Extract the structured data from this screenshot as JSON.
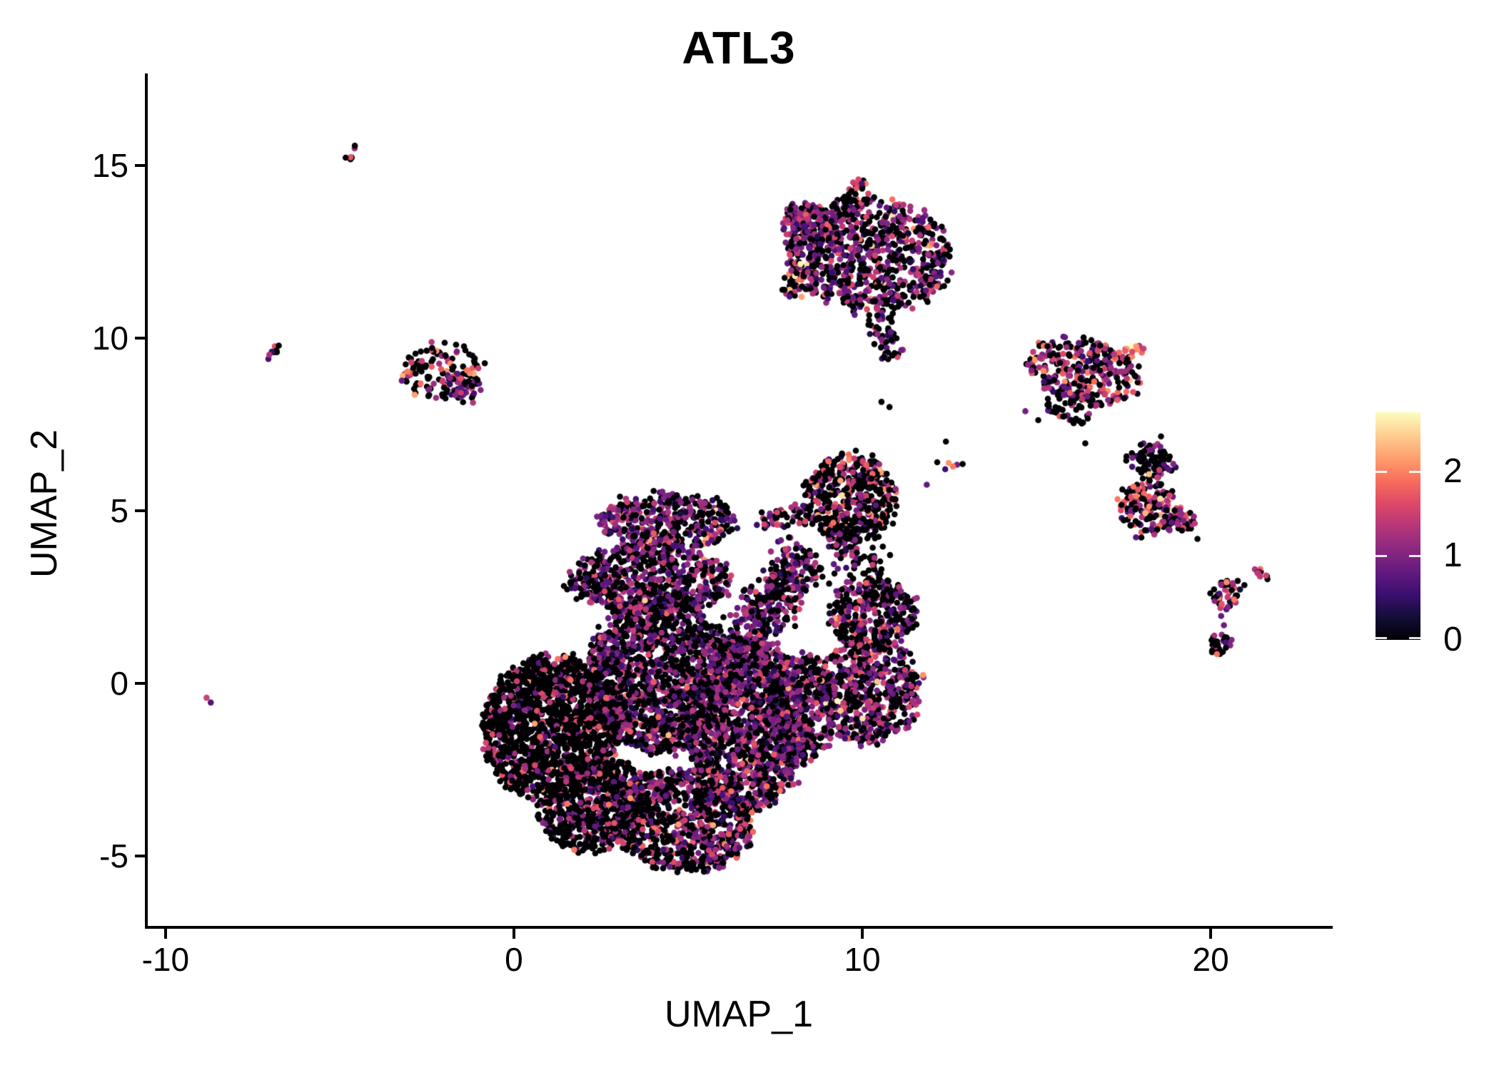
{
  "figure": {
    "background_color": "#FFFFFF",
    "axis_color": "#000000",
    "text_color": "#000000"
  },
  "chart_data": {
    "type": "scatter",
    "title": "ATL3",
    "xlabel": "UMAP_1",
    "ylabel": "UMAP_2",
    "xlim": [
      -10.55,
      23.46
    ],
    "ylim": [
      -7.07,
      17.62
    ],
    "x_ticks": [
      -10,
      0,
      10,
      20
    ],
    "y_ticks": [
      -5,
      0,
      5,
      10,
      15
    ],
    "grid": false,
    "point_radius_px": 4.3,
    "legend": {
      "type": "colorbar",
      "position": "right",
      "min": 0,
      "max": 2.7,
      "ticks": [
        0,
        1,
        2
      ]
    },
    "colormap": {
      "name": "magma",
      "stops": [
        [
          0.0,
          "#000004"
        ],
        [
          0.1,
          "#140E36"
        ],
        [
          0.2,
          "#3B0F70"
        ],
        [
          0.3,
          "#641A80"
        ],
        [
          0.4,
          "#8C2981"
        ],
        [
          0.5,
          "#B63679"
        ],
        [
          0.6,
          "#DE4968"
        ],
        [
          0.7,
          "#F76F5C"
        ],
        [
          0.8,
          "#FE9F6D"
        ],
        [
          0.9,
          "#FECE91"
        ],
        [
          1.0,
          "#FCFDBF"
        ]
      ]
    },
    "clusters": [
      {
        "t": "e",
        "cx": 1.1,
        "cy": -1.3,
        "rx": 1.95,
        "ry": 2.15,
        "rot": -15,
        "n": 1600,
        "p0": 0.8,
        "m": 1.35,
        "sd": 0.35
      },
      {
        "t": "e",
        "cx": 2.3,
        "cy": -3.5,
        "rx": 1.6,
        "ry": 1.25,
        "rot": 25,
        "n": 650,
        "p0": 0.7,
        "m": 1.2,
        "sd": 0.4
      },
      {
        "t": "e",
        "cx": 4.2,
        "cy": 0.3,
        "rx": 2.05,
        "ry": 2.3,
        "rot": 0,
        "n": 1500,
        "p0": 0.52,
        "m": 1.0,
        "sd": 0.42
      },
      {
        "t": "e",
        "cx": 4.8,
        "cy": -4.0,
        "rx": 2.1,
        "ry": 1.45,
        "rot": -8,
        "n": 850,
        "p0": 0.55,
        "m": 1.1,
        "sd": 0.45
      },
      {
        "t": "e",
        "cx": 6.7,
        "cy": -1.2,
        "rx": 1.75,
        "ry": 2.5,
        "rot": 0,
        "n": 1500,
        "p0": 0.4,
        "m": 1.0,
        "sd": 0.4
      },
      {
        "t": "e",
        "cx": 4.4,
        "cy": 4.7,
        "rx": 2.0,
        "ry": 0.8,
        "rot": 0,
        "n": 400,
        "p0": 0.42,
        "m": 1.1,
        "sd": 0.4,
        "hi": 0.02
      },
      {
        "t": "e",
        "cx": 3.9,
        "cy": 3.0,
        "rx": 2.4,
        "ry": 1.0,
        "rot": 0,
        "n": 600,
        "p0": 0.5,
        "m": 1.0,
        "sd": 0.4
      },
      {
        "t": "s",
        "x1": 6.3,
        "y1": 0.9,
        "x2": 8.4,
        "y2": 3.7,
        "w": 0.75,
        "n": 400,
        "p0": 0.45,
        "m": 1.0,
        "sd": 0.4
      },
      {
        "t": "e",
        "cx": 9.7,
        "cy": 5.35,
        "rx": 1.35,
        "ry": 1.25,
        "rot": 0,
        "n": 500,
        "p0": 0.66,
        "m": 1.35,
        "sd": 0.45,
        "hi": 0.03
      },
      {
        "t": "e",
        "cx": 10.3,
        "cy": 2.0,
        "rx": 1.25,
        "ry": 1.05,
        "rot": 0,
        "n": 360,
        "p0": 0.5,
        "m": 1.05,
        "sd": 0.4
      },
      {
        "t": "s",
        "x1": 9.0,
        "y1": 4.35,
        "x2": 10.4,
        "y2": 3.1,
        "w": 0.5,
        "n": 80,
        "p0": 0.55,
        "m": 1.0,
        "sd": 0.4
      },
      {
        "t": "e",
        "cx": 10.2,
        "cy": -0.2,
        "rx": 1.5,
        "ry": 1.55,
        "rot": 0,
        "n": 600,
        "p0": 0.48,
        "m": 1.1,
        "sd": 0.42,
        "hi": 0.02
      },
      {
        "t": "e",
        "cx": 8.3,
        "cy": -0.7,
        "rx": 1.0,
        "ry": 1.6,
        "rot": 0,
        "n": 320,
        "p0": 0.5,
        "m": 1.0,
        "sd": 0.4
      },
      {
        "t": "s",
        "x1": 7.0,
        "y1": 4.65,
        "x2": 8.6,
        "y2": 5.05,
        "w": 0.4,
        "n": 55,
        "p0": 0.5,
        "m": 1.2,
        "sd": 0.4
      },
      {
        "t": "e",
        "cx": 10.2,
        "cy": 12.4,
        "rx": 2.4,
        "ry": 1.65,
        "rot": -5,
        "n": 820,
        "p0": 0.47,
        "m": 1.0,
        "sd": 0.42,
        "hi": 0.025
      },
      {
        "t": "e",
        "cx": 8.6,
        "cy": 13.2,
        "rx": 0.9,
        "ry": 0.65,
        "rot": -20,
        "n": 170,
        "p0": 0.33,
        "m": 1.05,
        "sd": 0.35
      },
      {
        "t": "s",
        "x1": 9.6,
        "y1": 13.75,
        "x2": 9.9,
        "y2": 14.55,
        "w": 0.22,
        "n": 22,
        "p0": 0.45,
        "m": 1.5,
        "sd": 0.4
      },
      {
        "t": "s",
        "x1": 10.4,
        "y1": 10.9,
        "x2": 10.75,
        "y2": 9.35,
        "w": 0.42,
        "n": 65,
        "p0": 0.55,
        "m": 1.0,
        "sd": 0.4
      },
      {
        "t": "s",
        "x1": 7.9,
        "y1": 11.15,
        "x2": 8.15,
        "y2": 11.95,
        "w": 0.28,
        "n": 35,
        "p0": 0.45,
        "m": 1.4,
        "sd": 0.45,
        "hi": 0.08
      },
      {
        "t": "e",
        "cx": 16.35,
        "cy": 9.05,
        "rx": 1.65,
        "ry": 0.95,
        "rot": -13,
        "n": 280,
        "p0": 0.42,
        "m": 1.15,
        "sd": 0.45,
        "hi": 0.05
      },
      {
        "t": "s",
        "x1": 17.1,
        "y1": 9.45,
        "x2": 18.05,
        "y2": 9.7,
        "w": 0.2,
        "n": 28,
        "p0": 0.18,
        "m": 1.9,
        "sd": 0.45
      },
      {
        "t": "e",
        "cx": 16.0,
        "cy": 8.0,
        "rx": 0.8,
        "ry": 0.5,
        "rot": 0,
        "n": 55,
        "p0": 0.62,
        "m": 1.0,
        "sd": 0.4
      },
      {
        "t": "s",
        "x1": 18.05,
        "y1": 6.85,
        "x2": 18.6,
        "y2": 6.0,
        "w": 0.5,
        "n": 90,
        "p0": 0.68,
        "m": 1.0,
        "sd": 0.4
      },
      {
        "t": "e",
        "cx": 18.2,
        "cy": 5.05,
        "rx": 0.8,
        "ry": 0.8,
        "rot": 0,
        "n": 150,
        "p0": 0.5,
        "m": 1.25,
        "sd": 0.45,
        "hi": 0.06
      },
      {
        "t": "s",
        "x1": 18.85,
        "y1": 4.9,
        "x2": 19.45,
        "y2": 4.55,
        "w": 0.3,
        "n": 45,
        "p0": 0.45,
        "m": 1.2,
        "sd": 0.4
      },
      {
        "t": "e",
        "cx": 20.45,
        "cy": 2.55,
        "rx": 0.42,
        "ry": 0.45,
        "rot": 0,
        "n": 45,
        "p0": 0.48,
        "m": 1.25,
        "sd": 0.5,
        "hi": 0.06
      },
      {
        "t": "s",
        "x1": 21.3,
        "y1": 3.35,
        "x2": 21.65,
        "y2": 3.0,
        "w": 0.14,
        "n": 12,
        "p0": 0.15,
        "m": 1.35,
        "sd": 0.45
      },
      {
        "t": "e",
        "cx": 20.3,
        "cy": 1.1,
        "rx": 0.35,
        "ry": 0.3,
        "rot": 0,
        "n": 28,
        "p0": 0.6,
        "m": 0.95,
        "sd": 0.35
      },
      {
        "t": "e",
        "cx": -2.05,
        "cy": 9.05,
        "rx": 1.15,
        "ry": 0.82,
        "rot": 10,
        "n": 115,
        "p0": 0.72,
        "m": 1.5,
        "sd": 0.4,
        "hi": 0.06
      },
      {
        "t": "e",
        "cx": -1.45,
        "cy": 8.55,
        "rx": 0.5,
        "ry": 0.35,
        "rot": 0,
        "n": 40,
        "p0": 0.3,
        "m": 0.85,
        "sd": 0.3
      },
      {
        "t": "s",
        "x1": -3.25,
        "y1": 8.85,
        "x2": -2.6,
        "y2": 9.2,
        "w": 0.22,
        "n": 16,
        "p0": 0.3,
        "m": 1.6,
        "sd": 0.4
      },
      {
        "t": "s",
        "x1": -7.1,
        "y1": 9.4,
        "x2": -6.75,
        "y2": 9.75,
        "w": 0.16,
        "n": 8,
        "p0": 0.3,
        "m": 1.2,
        "sd": 0.5
      },
      {
        "t": "s",
        "x1": -4.85,
        "y1": 15.15,
        "x2": -4.55,
        "y2": 15.5,
        "w": 0.18,
        "n": 7,
        "p0": 0.45,
        "m": 1.5,
        "sd": 0.4
      },
      {
        "t": "p",
        "pts": [
          [
            -8.82,
            -0.42,
            1.5
          ],
          [
            -8.7,
            -0.56,
            0.7
          ]
        ]
      },
      {
        "t": "p",
        "pts": [
          [
            16.4,
            6.95,
            0
          ],
          [
            15.05,
            7.62,
            0
          ],
          [
            14.68,
            7.88,
            0.9
          ],
          [
            15.35,
            8.1,
            0
          ]
        ]
      },
      {
        "t": "p",
        "pts": [
          [
            10.55,
            8.15,
            0
          ],
          [
            10.78,
            8.0,
            0
          ],
          [
            12.15,
            6.4,
            0
          ],
          [
            12.48,
            6.38,
            2.1
          ],
          [
            12.6,
            6.28,
            1.95
          ],
          [
            12.72,
            6.33,
            0.9
          ],
          [
            12.38,
            6.2,
            0.55
          ],
          [
            12.88,
            6.35,
            0
          ],
          [
            11.85,
            5.75,
            0.8
          ]
        ]
      },
      {
        "t": "p",
        "pts": [
          [
            20.3,
            1.95,
            0.8
          ],
          [
            20.38,
            1.68,
            0.85
          ],
          [
            19.62,
            4.18,
            0
          ],
          [
            12.4,
            7.0,
            0
          ]
        ]
      }
    ]
  }
}
